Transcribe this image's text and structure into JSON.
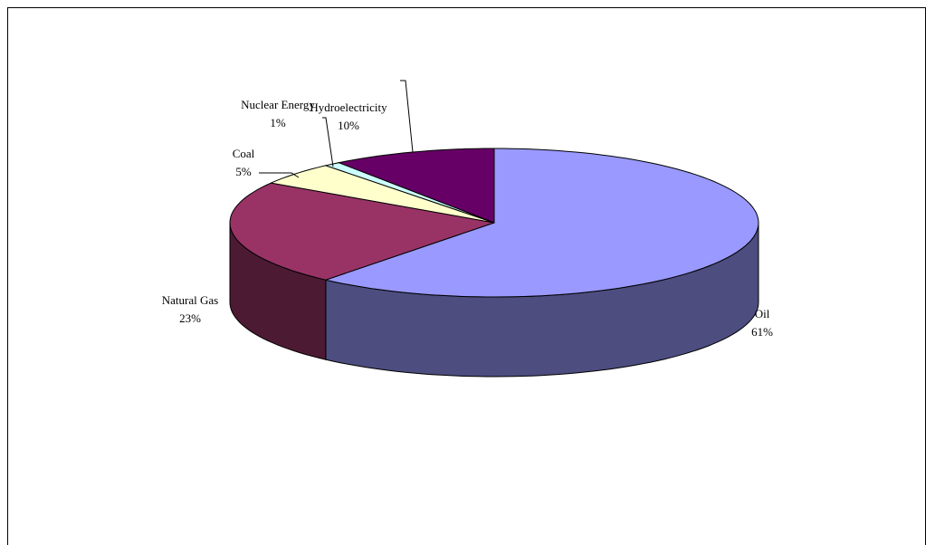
{
  "chart_data": {
    "type": "pie3d",
    "categories": [
      "Oil",
      "Natural Gas",
      "Coal",
      "Nuclear Energy",
      "Hydroelectricity"
    ],
    "values": [
      61,
      23,
      5,
      1,
      10
    ],
    "value_labels": [
      "61%",
      "23%",
      "5%",
      "1%",
      "10%"
    ],
    "colors": [
      "#9999ff",
      "#993366",
      "#ffffcc",
      "#ccffff",
      "#660066"
    ]
  }
}
